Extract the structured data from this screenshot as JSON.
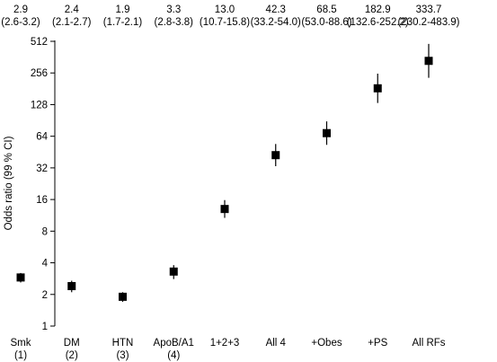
{
  "chart_data": {
    "type": "scatter",
    "ylabel": "Odds ratio (99 % CI)",
    "y_scale": "log2",
    "ylim": [
      1,
      512
    ],
    "yticks": [
      "1",
      "2",
      "4",
      "8",
      "16",
      "32",
      "64",
      "128",
      "256",
      "512"
    ],
    "grid": false,
    "legend": "none",
    "error_bars": true,
    "marker": "square",
    "categories": [
      {
        "label1": "Smk",
        "label2": "(1)",
        "value": 2.9,
        "lo": 2.6,
        "hi": 3.2,
        "or_text": "2.9",
        "ci_text": "(2.6-3.2)"
      },
      {
        "label1": "DM",
        "label2": "(2)",
        "value": 2.4,
        "lo": 2.1,
        "hi": 2.7,
        "or_text": "2.4",
        "ci_text": "(2.1-2.7)"
      },
      {
        "label1": "HTN",
        "label2": "(3)",
        "value": 1.9,
        "lo": 1.7,
        "hi": 2.1,
        "or_text": "1.9",
        "ci_text": "(1.7-2.1)"
      },
      {
        "label1": "ApoB/A1",
        "label2": "(4)",
        "value": 3.3,
        "lo": 2.8,
        "hi": 3.8,
        "or_text": "3.3",
        "ci_text": "(2.8-3.8)"
      },
      {
        "label1": "1+2+3",
        "label2": "",
        "value": 13.0,
        "lo": 10.7,
        "hi": 15.8,
        "or_text": "13.0",
        "ci_text": "(10.7-15.8)"
      },
      {
        "label1": "All 4",
        "label2": "",
        "value": 42.3,
        "lo": 33.2,
        "hi": 54.0,
        "or_text": "42.3",
        "ci_text": "(33.2-54.0)"
      },
      {
        "label1": "+Obes",
        "label2": "",
        "value": 68.5,
        "lo": 53.0,
        "hi": 88.6,
        "or_text": "68.5",
        "ci_text": "(53.0-88.6)"
      },
      {
        "label1": "+PS",
        "label2": "",
        "value": 182.9,
        "lo": 132.6,
        "hi": 252.2,
        "or_text": "182.9",
        "ci_text": "(132.6-252.2)"
      },
      {
        "label1": "All RFs",
        "label2": "",
        "value": 333.7,
        "lo": 230.2,
        "hi": 483.9,
        "or_text": "333.7",
        "ci_text": "(230.2-483.9)"
      }
    ]
  }
}
